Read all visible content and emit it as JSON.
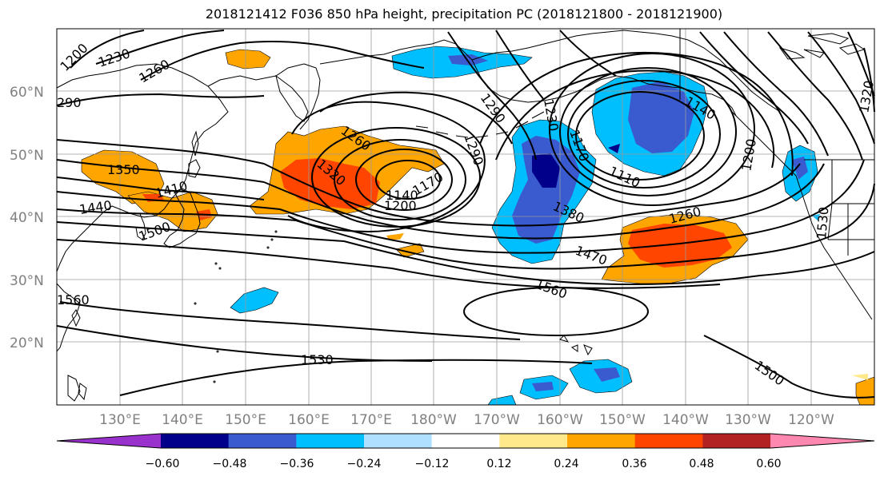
{
  "title": "2018121412 F036 850 hPa height, precipitation PC (2018121800 - 2018121900)",
  "map": {
    "lat_labels": [
      "20°N",
      "30°N",
      "40°N",
      "50°N",
      "60°N"
    ],
    "lon_labels": [
      "130°E",
      "140°E",
      "150°E",
      "160°E",
      "170°E",
      "180°W",
      "170°W",
      "160°W",
      "150°W",
      "140°W",
      "130°W",
      "120°W"
    ],
    "contour_labels": [
      "1200",
      "1230",
      "1260",
      "290",
      "1350",
      "1410",
      "1440",
      "1500",
      "1560",
      "1260",
      "1320",
      "1140",
      "1170",
      "1200",
      "1290",
      "1290",
      "1230",
      "1170",
      "1110",
      "1140",
      "1200",
      "1380",
      "1470",
      "1260",
      "1560",
      "1530",
      "1530",
      "1500",
      "1320"
    ]
  },
  "colorbar": {
    "labels": [
      "−0.60",
      "−0.48",
      "−0.36",
      "−0.24",
      "−0.12",
      "0.12",
      "0.24",
      "0.36",
      "0.48",
      "0.60"
    ],
    "colors": [
      "#9932cc",
      "#00008b",
      "#3a5bcf",
      "#00bfff",
      "#b0e0ff",
      "#ffffff",
      "#ffe98a",
      "#ffa500",
      "#ff4500",
      "#b22222",
      "#ff88b0"
    ]
  }
}
